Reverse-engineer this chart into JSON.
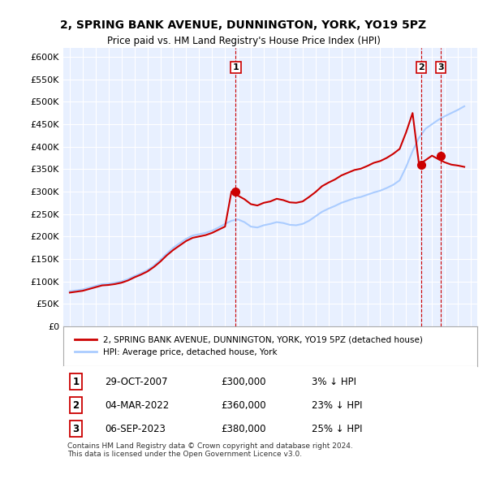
{
  "title": "2, SPRING BANK AVENUE, DUNNINGTON, YORK, YO19 5PZ",
  "subtitle": "Price paid vs. HM Land Registry's House Price Index (HPI)",
  "ylabel": "",
  "ylim": [
    0,
    620000
  ],
  "yticks": [
    0,
    50000,
    100000,
    150000,
    200000,
    250000,
    300000,
    350000,
    400000,
    450000,
    500000,
    550000,
    600000
  ],
  "ytick_labels": [
    "£0",
    "£50K",
    "£100K",
    "£150K",
    "£200K",
    "£250K",
    "£300K",
    "£350K",
    "£400K",
    "£450K",
    "£500K",
    "£550K",
    "£600K"
  ],
  "sale_color": "#cc0000",
  "hpi_color": "#aaccff",
  "vline_color": "#cc0000",
  "sale_marker_color": "#cc0000",
  "background_color": "#ffffff",
  "plot_bg_color": "#e8f0ff",
  "grid_color": "#ffffff",
  "legend_border_color": "#aaaaaa",
  "sale_label": "2, SPRING BANK AVENUE, DUNNINGTON, YORK, YO19 5PZ (detached house)",
  "hpi_label": "HPI: Average price, detached house, York",
  "transactions": [
    {
      "num": 1,
      "date": "29-OCT-2007",
      "price": 300000,
      "pct": "3%",
      "dir": "↓",
      "x": 2007.83
    },
    {
      "num": 2,
      "date": "04-MAR-2022",
      "price": 360000,
      "pct": "23%",
      "dir": "↓",
      "x": 2022.17
    },
    {
      "num": 3,
      "date": "06-SEP-2023",
      "price": 380000,
      "pct": "25%",
      "dir": "↓",
      "x": 2023.67
    }
  ],
  "copyright_text": "Contains HM Land Registry data © Crown copyright and database right 2024.\nThis data is licensed under the Open Government Licence v3.0.",
  "hpi_x": [
    1995.0,
    1995.5,
    1996.0,
    1996.5,
    1997.0,
    1997.5,
    1998.0,
    1998.5,
    1999.0,
    1999.5,
    2000.0,
    2000.5,
    2001.0,
    2001.5,
    2002.0,
    2002.5,
    2003.0,
    2003.5,
    2004.0,
    2004.5,
    2005.0,
    2005.5,
    2006.0,
    2006.5,
    2007.0,
    2007.5,
    2008.0,
    2008.5,
    2009.0,
    2009.5,
    2010.0,
    2010.5,
    2011.0,
    2011.5,
    2012.0,
    2012.5,
    2013.0,
    2013.5,
    2014.0,
    2014.5,
    2015.0,
    2015.5,
    2016.0,
    2016.5,
    2017.0,
    2017.5,
    2018.0,
    2018.5,
    2019.0,
    2019.5,
    2020.0,
    2020.5,
    2021.0,
    2021.5,
    2022.0,
    2022.5,
    2023.0,
    2023.5,
    2024.0,
    2024.5,
    2025.0,
    2025.5
  ],
  "hpi_y": [
    78000,
    80000,
    82000,
    86000,
    90000,
    94000,
    95000,
    97000,
    100000,
    105000,
    112000,
    118000,
    125000,
    135000,
    148000,
    162000,
    175000,
    185000,
    195000,
    202000,
    205000,
    208000,
    213000,
    220000,
    228000,
    235000,
    238000,
    232000,
    222000,
    220000,
    225000,
    228000,
    232000,
    230000,
    226000,
    225000,
    228000,
    235000,
    245000,
    255000,
    262000,
    268000,
    275000,
    280000,
    285000,
    288000,
    293000,
    298000,
    302000,
    308000,
    315000,
    325000,
    355000,
    390000,
    420000,
    440000,
    450000,
    460000,
    468000,
    475000,
    482000,
    490000
  ],
  "sale_x": [
    1995.0,
    1995.5,
    1996.0,
    1996.5,
    1997.0,
    1997.5,
    1998.0,
    1998.5,
    1999.0,
    1999.5,
    2000.0,
    2000.5,
    2001.0,
    2001.5,
    2002.0,
    2002.5,
    2003.0,
    2003.5,
    2004.0,
    2004.5,
    2005.0,
    2005.5,
    2006.0,
    2006.5,
    2007.0,
    2007.5,
    2008.0,
    2008.5,
    2009.0,
    2009.5,
    2010.0,
    2010.5,
    2011.0,
    2011.5,
    2012.0,
    2012.5,
    2013.0,
    2013.5,
    2014.0,
    2014.5,
    2015.0,
    2015.5,
    2016.0,
    2016.5,
    2017.0,
    2017.5,
    2018.0,
    2018.5,
    2019.0,
    2019.5,
    2020.0,
    2020.5,
    2021.0,
    2021.5,
    2022.0,
    2022.5,
    2023.0,
    2023.5,
    2024.0,
    2024.5,
    2025.0,
    2025.5
  ],
  "sale_y": [
    75000,
    77000,
    79000,
    83000,
    87000,
    91000,
    92000,
    94000,
    97000,
    102000,
    109000,
    115000,
    122000,
    132000,
    144000,
    158000,
    170000,
    180000,
    190000,
    197000,
    200000,
    203000,
    208000,
    215000,
    222000,
    300000,
    291000,
    283000,
    272000,
    269000,
    275000,
    278000,
    284000,
    281000,
    276000,
    275000,
    278000,
    288000,
    299000,
    312000,
    320000,
    327000,
    336000,
    342000,
    348000,
    351000,
    357000,
    364000,
    368000,
    375000,
    384000,
    395000,
    432000,
    475000,
    360000,
    370000,
    380000,
    372000,
    365000,
    360000,
    358000,
    355000
  ],
  "xlim": [
    1994.5,
    2026.5
  ],
  "xticks": [
    1995,
    1996,
    1997,
    1998,
    1999,
    2000,
    2001,
    2002,
    2003,
    2004,
    2005,
    2006,
    2007,
    2008,
    2009,
    2010,
    2011,
    2012,
    2013,
    2014,
    2015,
    2016,
    2017,
    2018,
    2019,
    2020,
    2021,
    2022,
    2023,
    2024,
    2025,
    2026
  ]
}
